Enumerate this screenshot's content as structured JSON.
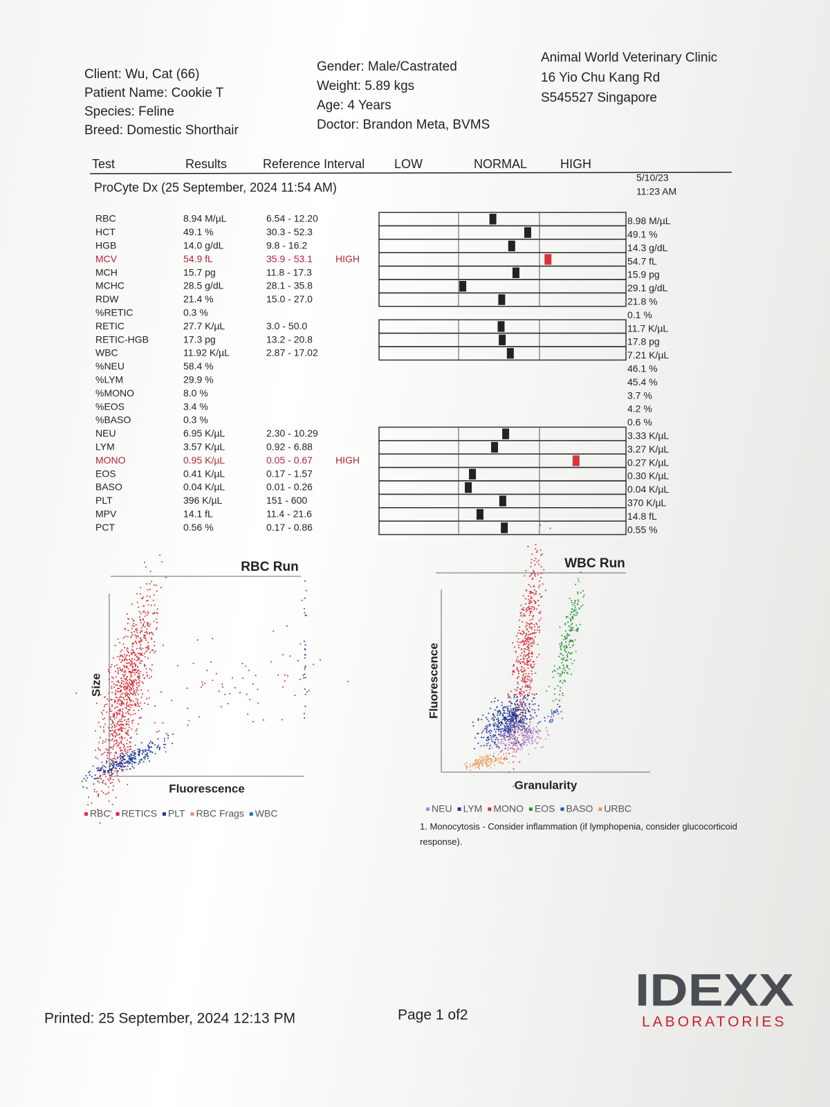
{
  "client": {
    "lines": [
      "Client: Wu, Cat (66)",
      "Patient Name: Cookie T",
      "Species: Feline",
      "Breed: Domestic Shorthair"
    ]
  },
  "patient": {
    "lines": [
      "Gender: Male/Castrated",
      "Weight: 5.89 kgs",
      "Age: 4 Years",
      "Doctor: Brandon Meta, BVMS"
    ]
  },
  "clinic": {
    "lines": [
      "Animal World Veterinary Clinic",
      "16 Yio Chu Kang Rd",
      "S545527 Singapore"
    ]
  },
  "columns": [
    "Test",
    "Results",
    "Reference Interval",
    "LOW",
    "NORMAL",
    "HIGH"
  ],
  "run_title": "ProCyte Dx (25 September, 2024 11:54 AM)",
  "previous": {
    "date": "5/10/23",
    "time": "11:23 AM"
  },
  "rows": [
    {
      "test": "RBC",
      "result": "8.94 M/µL",
      "reference": "6.54 - 12.20",
      "previous": "8.98 M/µL"
    },
    {
      "test": "HCT",
      "result": "49.1 %",
      "reference": "30.3 - 52.3",
      "previous": "49.1 %"
    },
    {
      "test": "HGB",
      "result": "14.0 g/dL",
      "reference": "9.8 - 16.2",
      "previous": "14.3 g/dL"
    },
    {
      "test": "MCV",
      "result": "54.9 fL",
      "reference": "35.9 - 53.1",
      "flag": "HIGH",
      "previous": "54.7 fL"
    },
    {
      "test": "MCH",
      "result": "15.7 pg",
      "reference": "11.8 - 17.3",
      "previous": "15.9 pg"
    },
    {
      "test": "MCHC",
      "result": "28.5 g/dL",
      "reference": "28.1 - 35.8",
      "previous": "29.1 g/dL"
    },
    {
      "test": "RDW",
      "result": "21.4 %",
      "reference": "15.0 - 27.0",
      "previous": "21.8 %"
    },
    {
      "test": "%RETIC",
      "result": "0.3 %",
      "previous": "0.1 %"
    },
    {
      "test": "RETIC",
      "result": "27.7 K/µL",
      "reference": "3.0 - 50.0",
      "previous": "11.7 K/µL"
    },
    {
      "test": "RETIC-HGB",
      "result": "17.3 pg",
      "reference": "13.2 - 20.8",
      "previous": "17.8 pg"
    },
    {
      "test": "WBC",
      "result": "11.92 K/µL",
      "reference": "2.87 - 17.02",
      "previous": "7.21 K/µL"
    },
    {
      "test": "%NEU",
      "result": "58.4 %",
      "previous": "46.1 %"
    },
    {
      "test": "%LYM",
      "result": "29.9 %",
      "previous": "45.4 %"
    },
    {
      "test": "%MONO",
      "result": "8.0 %",
      "previous": "3.7 %"
    },
    {
      "test": "%EOS",
      "result": "3.4 %",
      "previous": "4.2 %"
    },
    {
      "test": "%BASO",
      "result": "0.3 %",
      "previous": "0.6 %"
    },
    {
      "test": "NEU",
      "result": "6.95 K/µL",
      "reference": "2.30 - 10.29",
      "previous": "3.33 K/µL"
    },
    {
      "test": "LYM",
      "result": "3.57 K/µL",
      "reference": "0.92 - 6.88",
      "previous": "3.27 K/µL"
    },
    {
      "test": "MONO",
      "result": "0.95 K/µL",
      "reference": "0.05 - 0.67",
      "flag": "HIGH",
      "previous": "0.27 K/µL"
    },
    {
      "test": "EOS",
      "result": "0.41 K/µL",
      "reference": "0.17 - 1.57",
      "previous": "0.30 K/µL"
    },
    {
      "test": "BASO",
      "result": "0.04 K/µL",
      "reference": "0.01 - 0.26",
      "previous": "0.04 K/µL"
    },
    {
      "test": "PLT",
      "result": "396 K/µL",
      "reference": "151 - 600",
      "previous": "370 K/µL"
    },
    {
      "test": "MPV",
      "result": "14.1 fL",
      "reference": "11.4 - 21.6",
      "previous": "14.8 fL"
    },
    {
      "test": "PCT",
      "result": "0.56 %",
      "reference": "0.17 - 0.86",
      "previous": "0.55 %"
    }
  ],
  "rbc_run": {
    "title": "RBC Run",
    "y_label": "Size",
    "x_label": "Fluorescence",
    "legend": [
      {
        "name": "RBC",
        "color": "#d9343d"
      },
      {
        "name": "RETICS",
        "color": "#d0245a"
      },
      {
        "name": "PLT",
        "color": "#1f3a9a"
      },
      {
        "name": "RBC Frags",
        "color": "#ee8a6a"
      },
      {
        "name": "WBC",
        "color": "#1f7aa8"
      }
    ]
  },
  "wbc_run": {
    "title": "WBC Run",
    "y_label": "Fluorescence",
    "x_label": "Granularity",
    "legend": [
      {
        "name": "NEU",
        "color": "#b48ad0"
      },
      {
        "name": "LYM",
        "color": "#1f3a9a"
      },
      {
        "name": "MONO",
        "color": "#d9343d"
      },
      {
        "name": "EOS",
        "color": "#2a9a3a"
      },
      {
        "name": "BASO",
        "color": "#2a5ab0"
      },
      {
        "name": "URBC",
        "color": "#ee9a5a"
      }
    ]
  },
  "note": "1. Monocytosis - Consider inflammation (if lymphopenia, consider glucocorticoid response).",
  "footer": {
    "printed": "Printed: 25 September, 2024 12:13 PM",
    "page": "Page 1 of2",
    "logo": "IDEXX",
    "logo_sub": "LABORATORIES"
  }
}
